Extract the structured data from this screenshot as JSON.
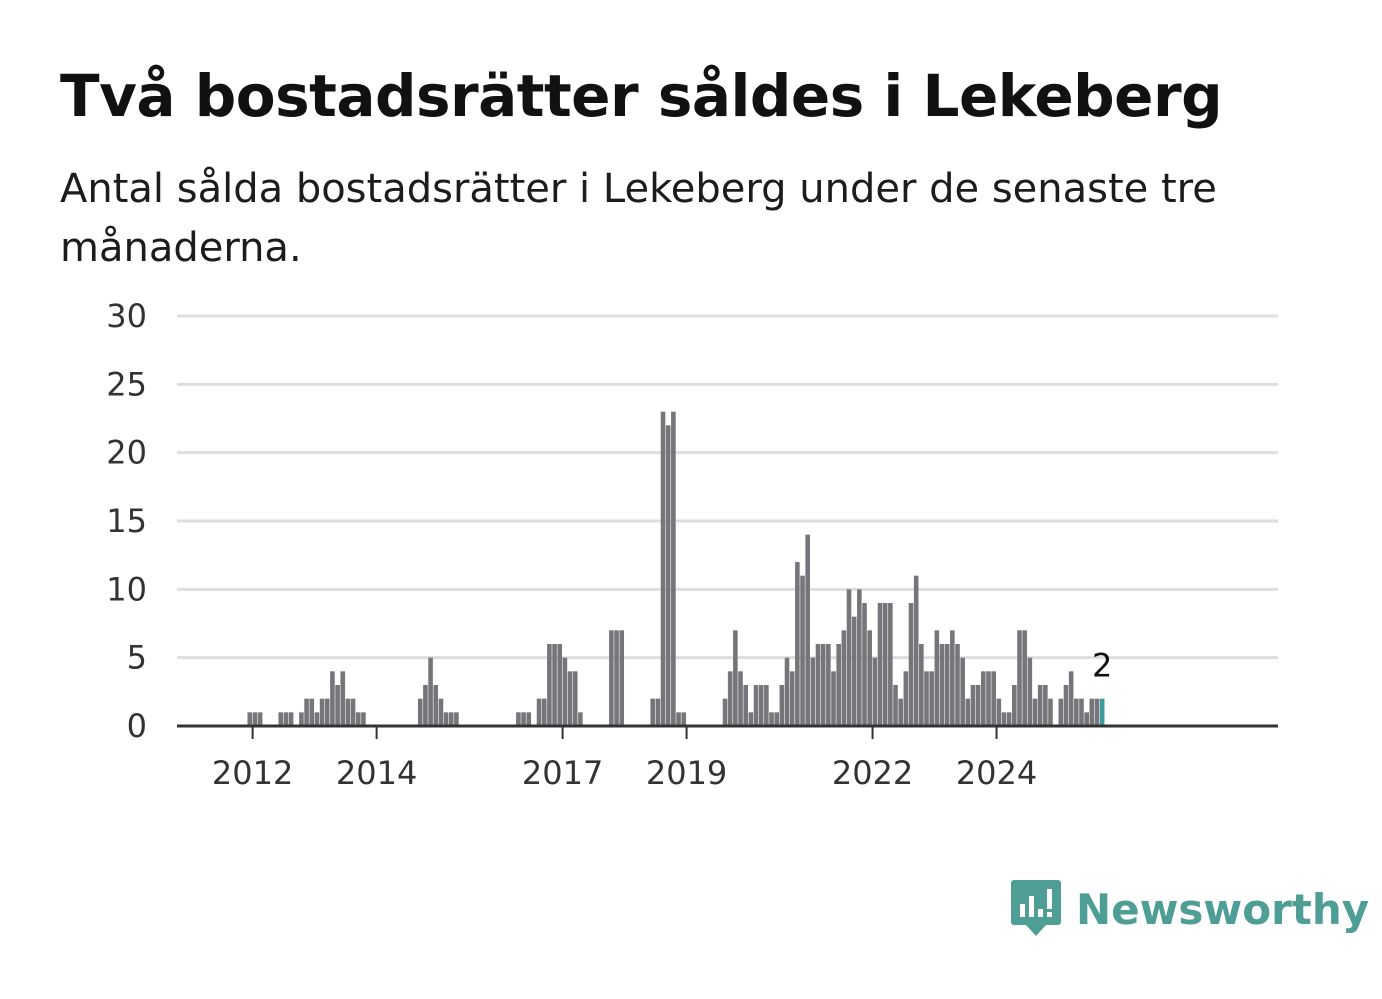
{
  "title": "Två bostadsrätter såldes i Lekeberg",
  "subtitle": "Antal sålda bostadsrätter i Lekeberg under de senaste tre månaderna.",
  "brand": {
    "name": "Newsworthy",
    "icon": "newsworthy-logo-icon",
    "color": "#4e9e95"
  },
  "colors": {
    "bar": "#767579",
    "highlight": "#3a9c9a"
  },
  "chart_data": {
    "type": "bar",
    "start": "2011-08",
    "frequency": "monthly",
    "ylim": [
      0,
      30
    ],
    "yticks": [
      0,
      5,
      10,
      15,
      20,
      25,
      30
    ],
    "xticks": [
      "2012",
      "2014",
      "2017",
      "2019",
      "2022",
      "2024"
    ],
    "grid": true,
    "last_value_label": "2",
    "values": [
      0,
      0,
      0,
      0,
      1,
      1,
      1,
      0,
      0,
      0,
      1,
      1,
      1,
      0,
      1,
      2,
      2,
      1,
      2,
      2,
      4,
      3,
      4,
      2,
      2,
      1,
      1,
      0,
      0,
      0,
      0,
      0,
      0,
      0,
      0,
      0,
      0,
      2,
      3,
      5,
      3,
      2,
      1,
      1,
      1,
      0,
      0,
      0,
      0,
      0,
      0,
      0,
      0,
      0,
      0,
      0,
      1,
      1,
      1,
      0,
      2,
      2,
      6,
      6,
      6,
      5,
      4,
      4,
      1,
      0,
      0,
      0,
      0,
      0,
      7,
      7,
      7,
      0,
      0,
      0,
      0,
      0,
      2,
      2,
      23,
      22,
      23,
      1,
      1,
      0,
      0,
      0,
      0,
      0,
      0,
      0,
      2,
      4,
      7,
      4,
      3,
      1,
      3,
      3,
      3,
      1,
      1,
      3,
      5,
      4,
      12,
      11,
      14,
      5,
      6,
      6,
      6,
      4,
      6,
      7,
      10,
      8,
      10,
      9,
      7,
      5,
      9,
      9,
      9,
      3,
      2,
      4,
      9,
      11,
      6,
      4,
      4,
      7,
      6,
      6,
      7,
      6,
      5,
      2,
      3,
      3,
      4,
      4,
      4,
      2,
      1,
      1,
      3,
      7,
      7,
      5,
      2,
      3,
      3,
      2,
      0,
      2,
      3,
      4,
      2,
      2,
      1,
      2,
      2,
      2
    ]
  }
}
